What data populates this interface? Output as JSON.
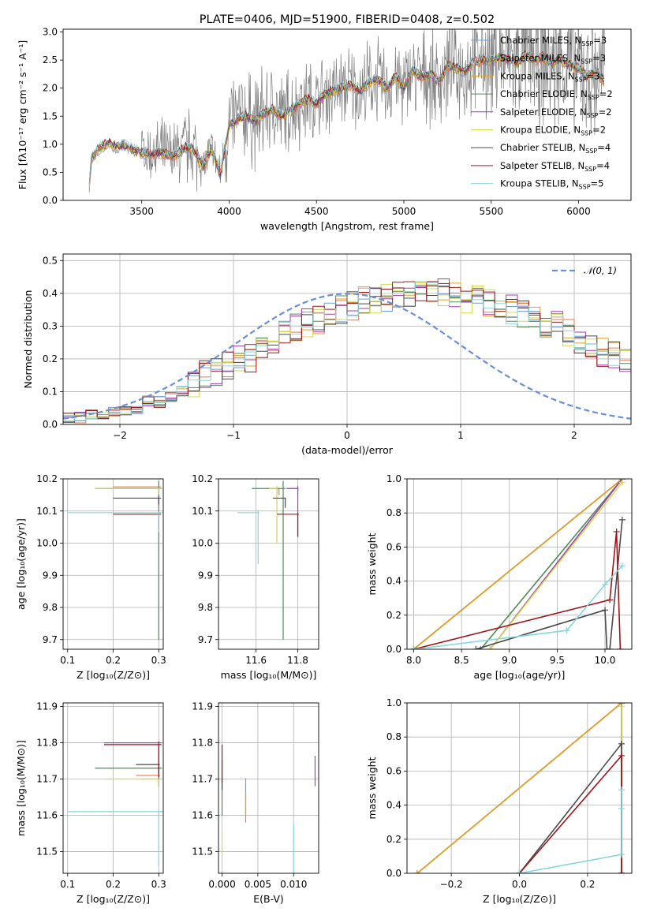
{
  "colors": {
    "Chabrier MILES": "#6f9bd8",
    "Salpeter MILES": "#e8794f",
    "Kroupa MILES": "#e0a020",
    "Chabrier ELODIE": "#4f8a55",
    "Salpeter ELODIE": "#a43bb8",
    "Kroupa ELODIE": "#d4d94a",
    "Chabrier STELIB": "#4a4a4a",
    "Salpeter STELIB": "#a01418",
    "Kroupa STELIB": "#86d6dc",
    "normal_curve": "#6a8fd8",
    "data_spectrum": "#808080",
    "grid": "#b0b0b0"
  },
  "chart_data": [
    {
      "id": "spectrum",
      "type": "line",
      "title": "PLATE=0406, MJD=51900, FIBERID=0408, z=0.502",
      "xlabel": "wavelength [Angstrom, rest frame]",
      "ylabel": "Flux [fλ10⁻¹⁷ erg cm⁻² s⁻¹ A⁻¹]",
      "xlim": [
        3050,
        6300
      ],
      "ylim": [
        0,
        3.05
      ],
      "xticks": [
        "3500",
        "4000",
        "4500",
        "5000",
        "5500",
        "6000"
      ],
      "yticks": [
        "0.0",
        "0.5",
        "1.0",
        "1.5",
        "2.0",
        "2.5",
        "3.0"
      ],
      "grid": false,
      "legend_position": "upper-right",
      "legend": [
        {
          "model": "Chabrier MILES",
          "prefix": "Chabrier MILES, N",
          "sub": "SSP",
          "suffix": "=3"
        },
        {
          "model": "Salpeter MILES",
          "prefix": "Salpeter MILES, N",
          "sub": "SSP",
          "suffix": "=3"
        },
        {
          "model": "Kroupa MILES",
          "prefix": "Kroupa MILES, N",
          "sub": "SSP",
          "suffix": "=3"
        },
        {
          "model": "Chabrier ELODIE",
          "prefix": "Chabrier ELODIE, N",
          "sub": "SSP",
          "suffix": "=2"
        },
        {
          "model": "Salpeter ELODIE",
          "prefix": "Salpeter ELODIE, N",
          "sub": "SSP",
          "suffix": "=2"
        },
        {
          "model": "Kroupa ELODIE",
          "prefix": "Kroupa ELODIE, N",
          "sub": "SSP",
          "suffix": "=2"
        },
        {
          "model": "Chabrier STELIB",
          "prefix": "Chabrier STELIB, N",
          "sub": "SSP",
          "suffix": "=4"
        },
        {
          "model": "Salpeter STELIB",
          "prefix": "Salpeter STELIB, N",
          "sub": "SSP",
          "suffix": "=4"
        },
        {
          "model": "Kroupa STELIB",
          "prefix": "Kroupa STELIB, N",
          "sub": "SSP",
          "suffix": "=5"
        }
      ],
      "model_continuum": {
        "x": [
          3200,
          3210,
          3250,
          3300,
          3350,
          3400,
          3450,
          3500,
          3550,
          3600,
          3650,
          3700,
          3750,
          3800,
          3850,
          3900,
          3950,
          4000,
          4050,
          4100,
          4150,
          4200,
          4250,
          4300,
          4350,
          4400,
          4450,
          4500,
          4550,
          4600,
          4650,
          4700,
          4750,
          4800,
          4850,
          4900,
          4950,
          5000,
          5050,
          5100,
          5150,
          5200,
          5250,
          5300,
          5350,
          5400,
          5450,
          5500,
          5550,
          5600,
          5650,
          5700,
          5750,
          5800,
          5850,
          5900,
          5950,
          6000,
          6050,
          6100,
          6150
        ],
        "y": [
          0.2,
          0.72,
          0.9,
          1.02,
          0.95,
          0.98,
          0.9,
          0.85,
          0.82,
          0.86,
          0.8,
          0.82,
          0.95,
          0.9,
          0.6,
          0.92,
          0.45,
          1.35,
          1.45,
          1.5,
          1.4,
          1.55,
          1.62,
          1.5,
          1.6,
          1.72,
          1.8,
          1.72,
          1.9,
          1.95,
          2.0,
          2.05,
          1.95,
          2.1,
          2.15,
          2.0,
          2.2,
          2.0,
          2.3,
          2.2,
          2.25,
          2.1,
          2.4,
          2.35,
          2.3,
          2.45,
          2.5,
          2.48,
          2.55,
          2.5,
          2.45,
          2.6,
          2.5,
          2.55,
          2.45,
          2.5,
          2.4,
          2.35,
          2.2,
          2.3,
          2.1
        ]
      },
      "data_band": {
        "x": [
          3500,
          4000,
          4500,
          5000,
          5500,
          6000,
          6150
        ],
        "amplitude": [
          0.6,
          1.1,
          0.9,
          0.9,
          1.3,
          1.6,
          1.6
        ]
      }
    },
    {
      "id": "residuals",
      "type": "bar",
      "xlabel": "(data-model)/error",
      "ylabel": "Normed distribution",
      "xlim": [
        -2.5,
        2.5
      ],
      "ylim": [
        0,
        0.52
      ],
      "xticks": [
        "−2",
        "−1",
        "0",
        "1",
        "2"
      ],
      "yticks": [
        "0.0",
        "0.1",
        "0.2",
        "0.3",
        "0.4",
        "0.5"
      ],
      "grid": true,
      "legend_position": "upper-right",
      "legend_label": "𝒩(0, 1)",
      "bin_edges_start": -2.5,
      "bin_width": 0.1,
      "base_histogram": [
        0.02,
        0.02,
        0.03,
        0.03,
        0.04,
        0.04,
        0.05,
        0.07,
        0.07,
        0.08,
        0.1,
        0.12,
        0.15,
        0.16,
        0.18,
        0.2,
        0.2,
        0.24,
        0.25,
        0.28,
        0.3,
        0.31,
        0.32,
        0.34,
        0.35,
        0.36,
        0.38,
        0.38,
        0.39,
        0.4,
        0.4,
        0.41,
        0.4,
        0.4,
        0.39,
        0.38,
        0.38,
        0.37,
        0.36,
        0.35,
        0.34,
        0.33,
        0.31,
        0.3,
        0.28,
        0.26,
        0.24,
        0.22,
        0.21,
        0.19,
        0.17,
        0.15,
        0.13,
        0.11,
        0.1,
        0.09,
        0.08,
        0.07,
        0.06,
        0.05,
        0.04,
        0.04,
        0.03,
        0.03,
        0.03,
        0.02,
        0.02,
        0.02,
        0.02,
        0.02
      ]
    },
    {
      "id": "age-vs-Z",
      "type": "scatter",
      "xlabel": "Z [log₁₀(Z/Z⊙)]",
      "ylabel": "age  [log₁₀(age/yr)]",
      "xlim": [
        0.09,
        0.31
      ],
      "ylim": [
        9.67,
        10.2
      ],
      "xticks": [
        "0.1",
        "0.2",
        "0.3"
      ],
      "yticks": [
        "9.7",
        "9.8",
        "9.9",
        "10.0",
        "10.1",
        "10.2"
      ],
      "grid": true,
      "points": [
        {
          "model": "Chabrier MILES",
          "x": 0.3,
          "y": 10.17,
          "xerr": 0.14,
          "yerr": 0.03
        },
        {
          "model": "Salpeter MILES",
          "x": 0.3,
          "y": 10.175,
          "xerr": 0.1,
          "yerr": 0.02
        },
        {
          "model": "Kroupa MILES",
          "x": 0.3,
          "y": 10.17,
          "xerr": 0.12,
          "yerr": 0.03
        },
        {
          "model": "Chabrier ELODIE",
          "x": 0.3,
          "y": 10.17,
          "xerr": 0.14,
          "yerr": 0.47
        },
        {
          "model": "Salpeter ELODIE",
          "x": 0.3,
          "y": 10.17,
          "xerr": 0.12,
          "yerr": 0.05
        },
        {
          "model": "Kroupa ELODIE",
          "x": 0.3,
          "y": 10.17,
          "xerr": 0.14,
          "yerr": 0.02
        },
        {
          "model": "Chabrier STELIB",
          "x": 0.3,
          "y": 10.14,
          "xerr": 0.1,
          "yerr": 0.02
        },
        {
          "model": "Salpeter STELIB",
          "x": 0.3,
          "y": 10.09,
          "xerr": 0.1,
          "yerr": 0.05
        },
        {
          "model": "Kroupa STELIB",
          "x": 0.3,
          "y": 10.095,
          "xerr": 0.2,
          "yerr": 0.06
        }
      ]
    },
    {
      "id": "age-vs-mass",
      "type": "scatter",
      "xlabel": "mass [log₁₀(M/M⊙)]",
      "ylabel": "",
      "xlim": [
        11.42,
        11.9
      ],
      "ylim": [
        9.67,
        10.2
      ],
      "xticks": [
        "11.6",
        "11.8"
      ],
      "yticks": [
        "9.7",
        "9.8",
        "9.9",
        "10.0",
        "10.1",
        "10.2"
      ],
      "grid": true,
      "points": [
        {
          "model": "Chabrier MILES",
          "x": 11.8,
          "y": 10.17,
          "xerr": 0.06,
          "yerr": 0.02
        },
        {
          "model": "Salpeter MILES",
          "x": 11.71,
          "y": 10.17,
          "xerr": 0.06,
          "yerr": 0.02
        },
        {
          "model": "Kroupa MILES",
          "x": 11.7,
          "y": 10.17,
          "xerr": 0.04,
          "yerr": 0.02
        },
        {
          "model": "Chabrier ELODIE",
          "x": 11.73,
          "y": 10.17,
          "xerr": 0.15,
          "yerr": 0.47
        },
        {
          "model": "Salpeter ELODIE",
          "x": 11.8,
          "y": 10.17,
          "xerr": 0.05,
          "yerr": 0.15
        },
        {
          "model": "Kroupa ELODIE",
          "x": 11.7,
          "y": 10.17,
          "xerr": 0.04,
          "yerr": 0.17
        },
        {
          "model": "Chabrier STELIB",
          "x": 11.74,
          "y": 10.14,
          "xerr": 0.06,
          "yerr": 0.03
        },
        {
          "model": "Salpeter STELIB",
          "x": 11.8,
          "y": 10.09,
          "xerr": 0.1,
          "yerr": 0.07
        },
        {
          "model": "Kroupa STELIB",
          "x": 11.61,
          "y": 10.095,
          "xerr": 0.1,
          "yerr": 0.16
        }
      ]
    },
    {
      "id": "massweight-vs-age",
      "type": "line",
      "xlabel": "age  [log₁₀(age/yr)]",
      "ylabel": "mass weight",
      "xlim": [
        7.93,
        10.28
      ],
      "ylim": [
        0,
        1
      ],
      "xticks": [
        "8.0",
        "8.5",
        "9.0",
        "9.5",
        "10.0"
      ],
      "yticks": [
        "0.0",
        "0.2",
        "0.4",
        "0.6",
        "0.8",
        "1.0"
      ],
      "grid": true,
      "series": [
        {
          "model": "Chabrier MILES",
          "x": [
            8.0,
            10.18
          ],
          "y": [
            0.0,
            1.0
          ]
        },
        {
          "model": "Salpeter MILES",
          "x": [
            8.0,
            10.18
          ],
          "y": [
            0.0,
            1.0
          ]
        },
        {
          "model": "Kroupa MILES",
          "x": [
            8.0,
            10.18
          ],
          "y": [
            0.0,
            1.0
          ]
        },
        {
          "model": "Chabrier ELODIE",
          "x": [
            8.7,
            10.18
          ],
          "y": [
            0.0,
            1.0
          ]
        },
        {
          "model": "Salpeter ELODIE",
          "x": [
            8.8,
            10.18
          ],
          "y": [
            0.0,
            1.0
          ]
        },
        {
          "model": "Kroupa ELODIE",
          "x": [
            8.8,
            10.18
          ],
          "y": [
            0.0,
            0.98
          ]
        },
        {
          "model": "Chabrier STELIB",
          "x": [
            8.65,
            10.0,
            10.02,
            10.05,
            10.18
          ],
          "y": [
            0.0,
            0.23,
            0.0,
            0.0,
            0.76
          ]
        },
        {
          "model": "Salpeter STELIB",
          "x": [
            8.0,
            10.05,
            10.12,
            10.16
          ],
          "y": [
            0.0,
            0.29,
            0.69,
            0.0
          ]
        },
        {
          "model": "Kroupa STELIB",
          "x": [
            8.0,
            9.6,
            10.0,
            10.18
          ],
          "y": [
            0.0,
            0.11,
            0.38,
            0.49
          ]
        }
      ]
    },
    {
      "id": "mass-vs-Z",
      "type": "scatter",
      "xlabel": "Z [log₁₀(Z/Z⊙)]",
      "ylabel": "mass [log₁₀(M/M⊙)]",
      "xlim": [
        0.09,
        0.31
      ],
      "ylim": [
        11.44,
        11.91
      ],
      "xticks": [
        "0.1",
        "0.2",
        "0.3"
      ],
      "yticks": [
        "11.5",
        "11.6",
        "11.7",
        "11.8",
        "11.9"
      ],
      "grid": true,
      "points": [
        {
          "model": "Chabrier MILES",
          "x": 0.3,
          "y": 11.8,
          "xerr": 0.12,
          "yerr": 0.02
        },
        {
          "model": "Salpeter MILES",
          "x": 0.3,
          "y": 11.71,
          "xerr": 0.05,
          "yerr": 0.02
        },
        {
          "model": "Kroupa MILES",
          "x": 0.3,
          "y": 11.7,
          "xerr": 0.04,
          "yerr": 0.02
        },
        {
          "model": "Chabrier ELODIE",
          "x": 0.3,
          "y": 11.73,
          "xerr": 0.14,
          "yerr": 0.05
        },
        {
          "model": "Salpeter ELODIE",
          "x": 0.3,
          "y": 11.8,
          "xerr": 0.12,
          "yerr": 0.09
        },
        {
          "model": "Kroupa ELODIE",
          "x": 0.3,
          "y": 11.7,
          "xerr": 0.12,
          "yerr": 0.02
        },
        {
          "model": "Chabrier STELIB",
          "x": 0.3,
          "y": 11.74,
          "xerr": 0.05,
          "yerr": 0.02
        },
        {
          "model": "Salpeter STELIB",
          "x": 0.3,
          "y": 11.795,
          "xerr": 0.12,
          "yerr": 0.09
        },
        {
          "model": "Kroupa STELIB",
          "x": 0.3,
          "y": 11.61,
          "xerr": 0.2,
          "yerr": 0.15
        }
      ]
    },
    {
      "id": "mass-vs-ebv",
      "type": "scatter",
      "xlabel": "E(B-V)",
      "ylabel": "",
      "xlim": [
        -0.0005,
        0.0135
      ],
      "ylim": [
        11.44,
        11.91
      ],
      "xticks": [
        "0.000",
        "0.005",
        "0.010"
      ],
      "yticks": [
        "11.5",
        "11.6",
        "11.7",
        "11.8",
        "11.9"
      ],
      "grid": true,
      "points": [
        {
          "model": "Chabrier MILES",
          "x": 0.0033,
          "y": 11.7,
          "xerr": 0,
          "yerr": 0.05
        },
        {
          "model": "Salpeter MILES",
          "x": 0.0033,
          "y": 11.65,
          "xerr": 0,
          "yerr": 0.07
        },
        {
          "model": "Kroupa MILES",
          "x": 0.0033,
          "y": 11.66,
          "xerr": 0,
          "yerr": 0.06
        },
        {
          "model": "Chabrier ELODIE",
          "x": 0.0,
          "y": 11.7,
          "xerr": 0,
          "yerr": 0.1
        },
        {
          "model": "Salpeter ELODIE",
          "x": 0.013,
          "y": 11.76,
          "xerr": 0,
          "yerr": 0.08
        },
        {
          "model": "Kroupa ELODIE",
          "x": 0.0,
          "y": 11.55,
          "xerr": 0,
          "yerr": 0.06
        },
        {
          "model": "Chabrier STELIB",
          "x": 0.0,
          "y": 11.75,
          "xerr": 0,
          "yerr": 0.08
        },
        {
          "model": "Salpeter STELIB",
          "x": 0.0,
          "y": 11.79,
          "xerr": 0,
          "yerr": 0.1
        },
        {
          "model": "Kroupa STELIB",
          "x": 0.01,
          "y": 11.57,
          "xerr": 0,
          "yerr": 0.13
        }
      ]
    },
    {
      "id": "massweight-vs-Z",
      "type": "line",
      "xlabel": "Z [log₁₀(Z/Z⊙)]",
      "ylabel": "mass weight",
      "xlim": [
        -0.33,
        0.33
      ],
      "ylim": [
        0,
        1
      ],
      "xticks": [
        "−0.2",
        "0.0",
        "0.2"
      ],
      "yticks": [
        "0.0",
        "0.2",
        "0.4",
        "0.6",
        "0.8",
        "1.0"
      ],
      "grid": true,
      "series": [
        {
          "model": "Chabrier MILES",
          "x": [
            -0.3,
            0.3
          ],
          "y": [
            0.0,
            1.0
          ]
        },
        {
          "model": "Salpeter MILES",
          "x": [
            -0.3,
            0.3
          ],
          "y": [
            0.0,
            1.0
          ]
        },
        {
          "model": "Kroupa MILES",
          "x": [
            -0.3,
            0.3
          ],
          "y": [
            0.0,
            1.0
          ]
        },
        {
          "model": "Chabrier ELODIE",
          "x": [
            0.3,
            0.3
          ],
          "y": [
            0.0,
            1.0
          ]
        },
        {
          "model": "Salpeter ELODIE",
          "x": [
            0.3,
            0.3
          ],
          "y": [
            0.0,
            1.0
          ]
        },
        {
          "model": "Kroupa ELODIE",
          "x": [
            0.3,
            0.3
          ],
          "y": [
            0.0,
            0.98
          ]
        },
        {
          "model": "Chabrier STELIB",
          "x": [
            0.0,
            0.3,
            0.3
          ],
          "y": [
            0.0,
            0.76,
            0.0
          ]
        },
        {
          "model": "Salpeter STELIB",
          "x": [
            0.0,
            0.3,
            0.3
          ],
          "y": [
            0.0,
            0.69,
            0.0
          ]
        },
        {
          "model": "Kroupa STELIB",
          "x": [
            0.0,
            0.3,
            0.3,
            0.3
          ],
          "y": [
            0.0,
            0.11,
            0.38,
            0.49
          ]
        }
      ]
    }
  ]
}
